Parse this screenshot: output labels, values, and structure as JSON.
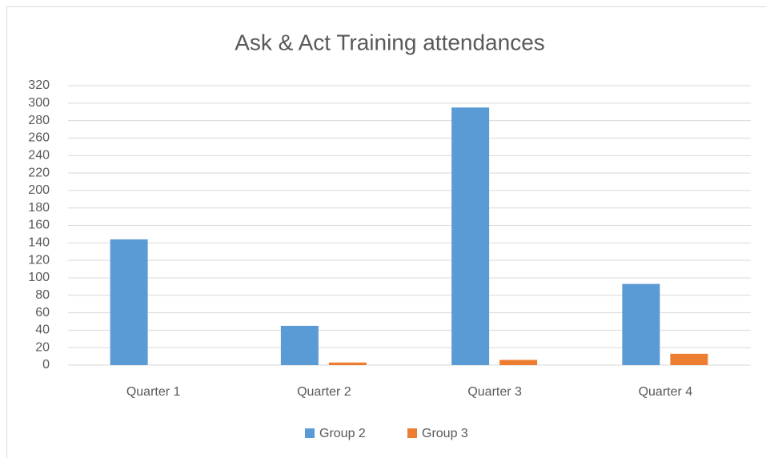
{
  "chart_data": {
    "type": "bar",
    "title": "Ask & Act Training attendances",
    "categories": [
      "Quarter 1",
      "Quarter 2",
      "Quarter 3",
      "Quarter 4"
    ],
    "series": [
      {
        "name": "Group 2",
        "color": "#5b9bd5",
        "values": [
          144,
          45,
          295,
          93
        ]
      },
      {
        "name": "Group 3",
        "color": "#ed7d31",
        "values": [
          0,
          3,
          6,
          13
        ]
      }
    ],
    "ylim": [
      0,
      320
    ],
    "yticks": [
      0,
      20,
      40,
      60,
      80,
      100,
      120,
      140,
      160,
      180,
      200,
      220,
      240,
      260,
      280,
      300,
      320
    ],
    "grid": true,
    "legend": "bottom"
  }
}
